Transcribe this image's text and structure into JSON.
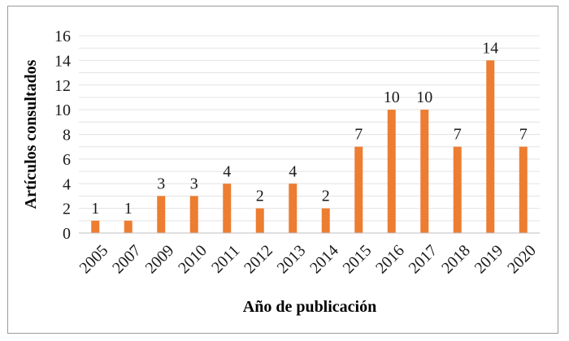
{
  "chart_data": {
    "type": "bar",
    "categories": [
      "2005",
      "2007",
      "2009",
      "2010",
      "2011",
      "2012",
      "2013",
      "2014",
      "2015",
      "2016",
      "2017",
      "2018",
      "2019",
      "2020"
    ],
    "values": [
      1,
      1,
      3,
      3,
      4,
      2,
      4,
      2,
      7,
      10,
      10,
      7,
      14,
      7
    ],
    "xlabel": "Año de publicación",
    "ylabel": "Artículos consultados",
    "ylim": [
      0,
      16
    ],
    "yticks": [
      "0",
      "2",
      "4",
      "6",
      "8",
      "10",
      "12",
      "14",
      "16"
    ],
    "bar_color": "#ED7D31",
    "grid": true,
    "data_labels": true
  }
}
